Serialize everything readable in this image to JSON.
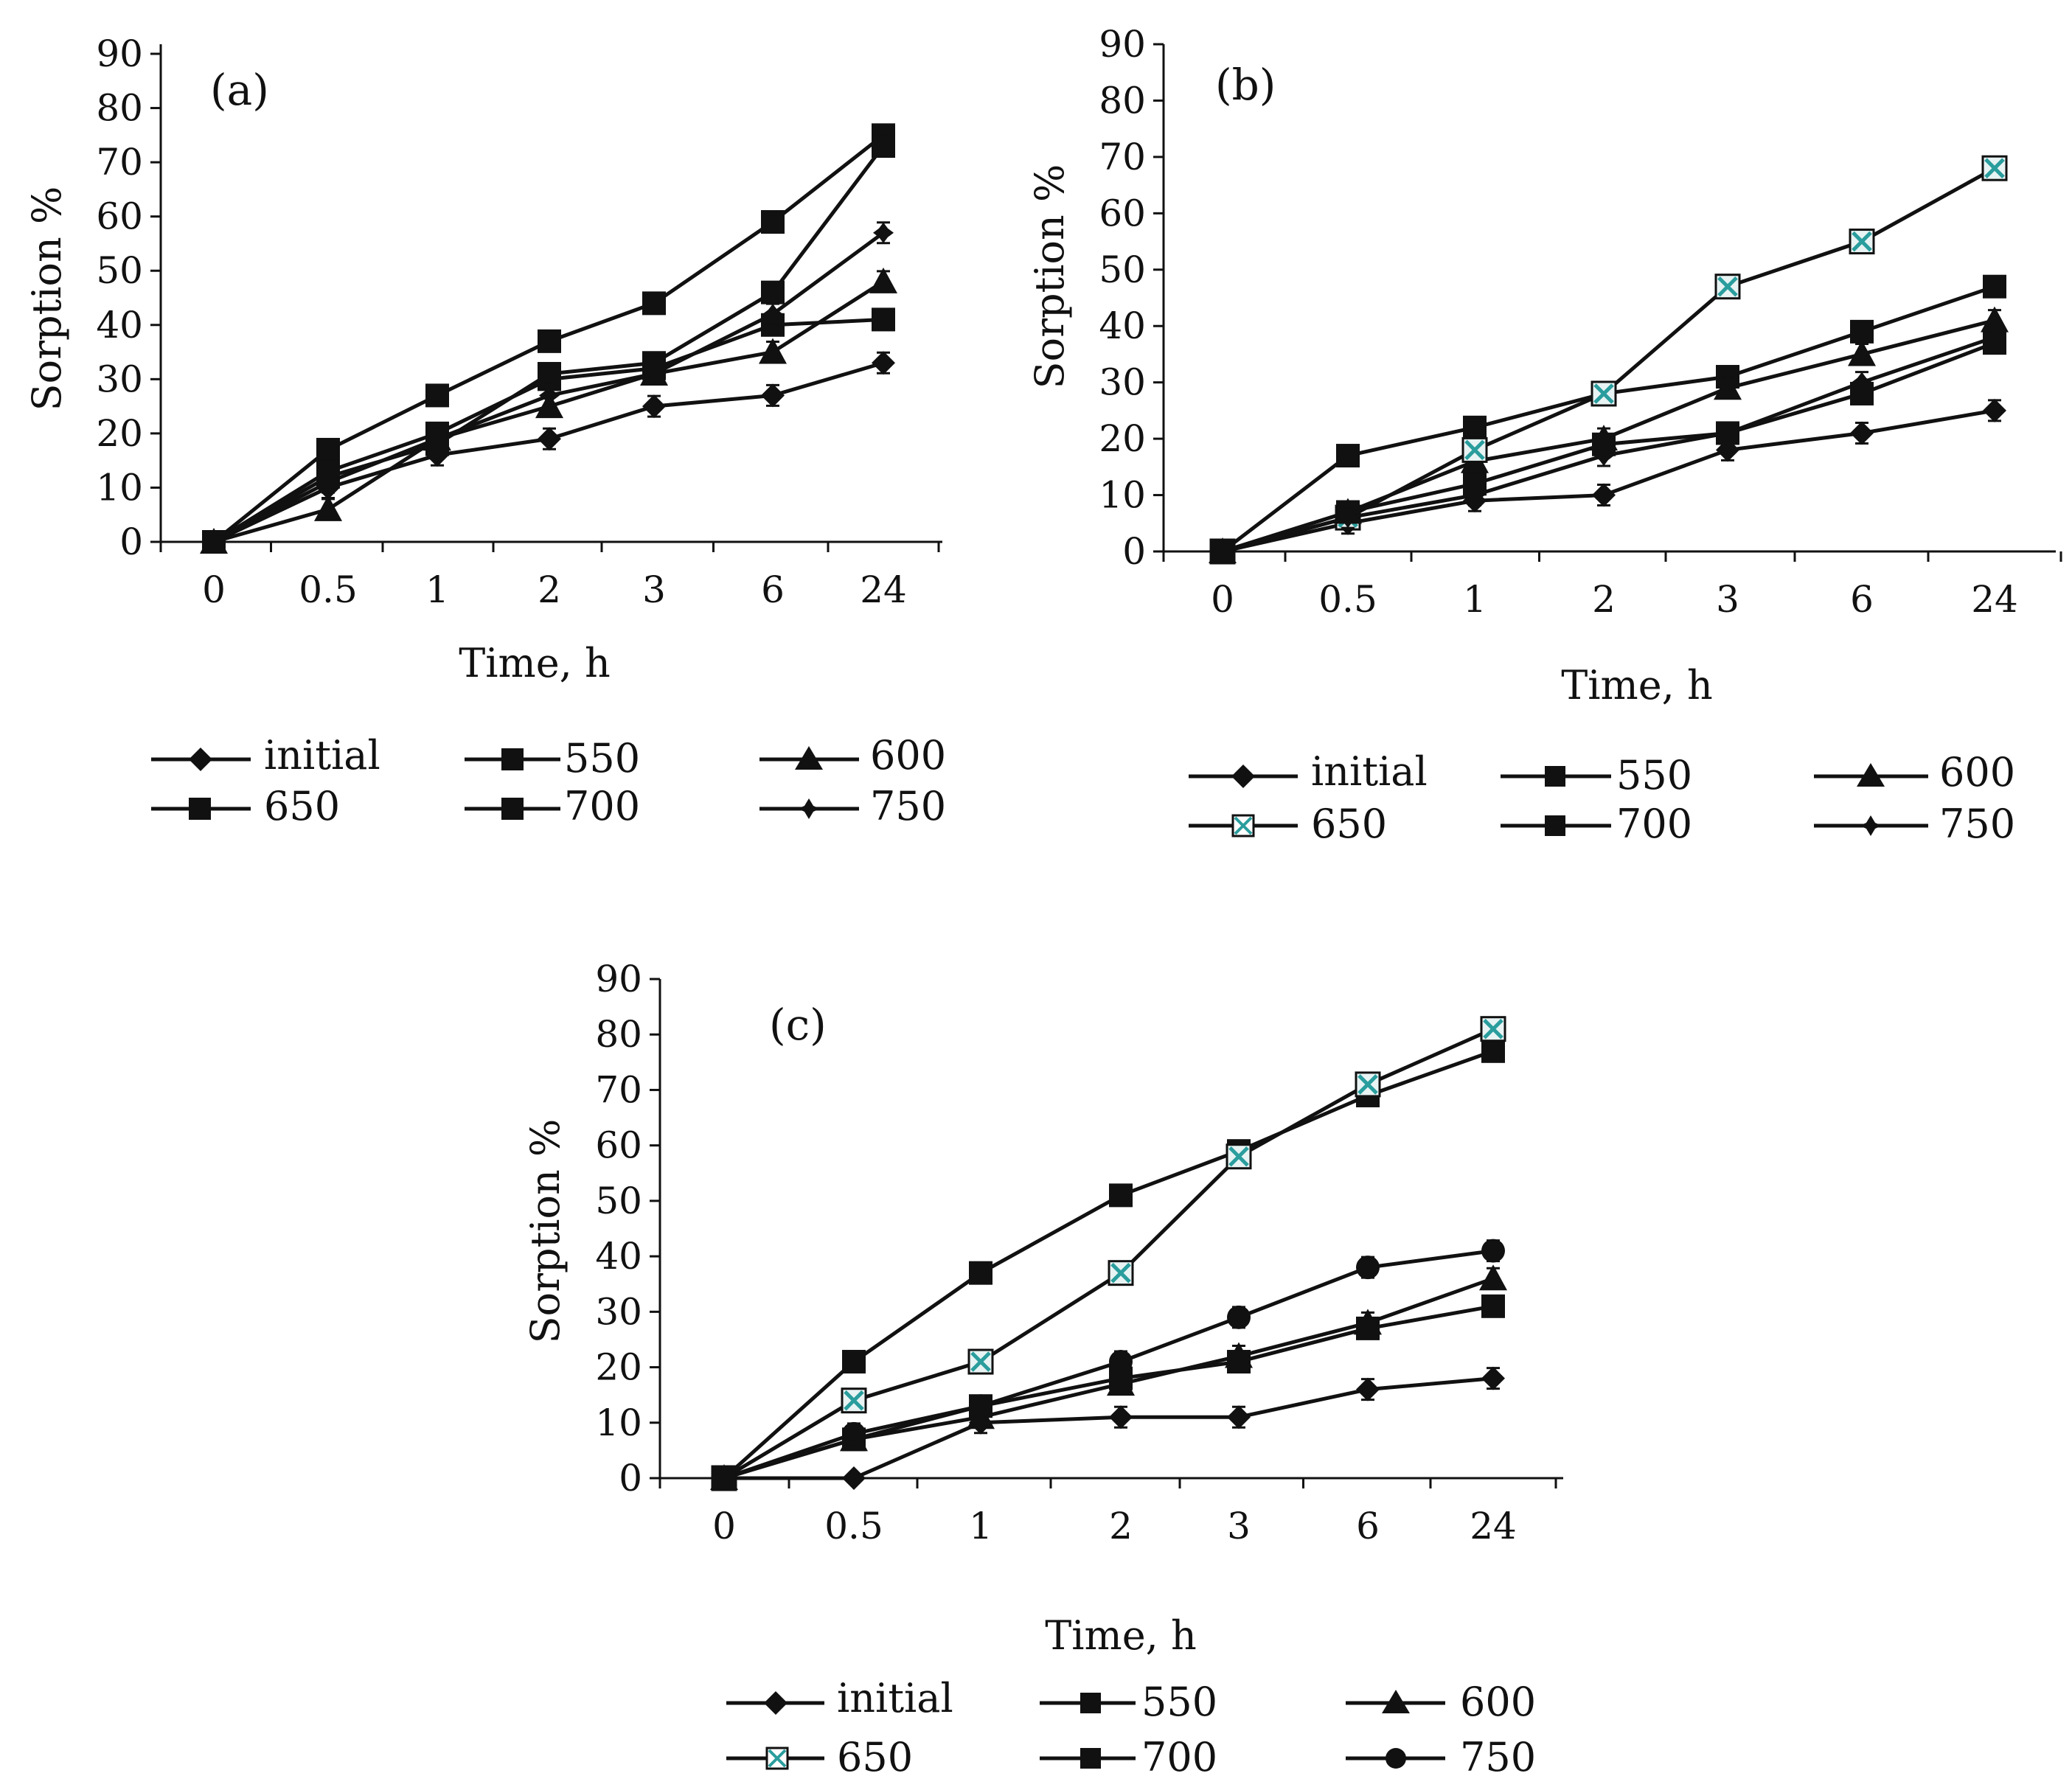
{
  "chart_data": [
    {
      "type": "line",
      "panel_label": "(a)",
      "title": "",
      "xlabel": "Time, h",
      "ylabel": "Sorption %",
      "categories": [
        "0",
        "0.5",
        "1",
        "2",
        "3",
        "6",
        "24"
      ],
      "yticks": [
        "0",
        "10",
        "20",
        "30",
        "40",
        "50",
        "60",
        "70",
        "80",
        "90"
      ],
      "ylim": [
        0,
        90
      ],
      "series": [
        {
          "name": "initial",
          "marker": "diamond",
          "values": [
            0,
            10,
            16,
            19,
            25,
            27,
            33
          ]
        },
        {
          "name": "550",
          "marker": "square",
          "values": [
            0,
            17,
            27,
            37,
            44,
            59,
            75
          ]
        },
        {
          "name": "600",
          "marker": "triangle",
          "values": [
            0,
            6,
            19,
            25,
            31,
            35,
            48
          ]
        },
        {
          "name": "650",
          "marker": "square",
          "values": [
            0,
            12,
            18,
            31,
            33,
            46,
            73
          ]
        },
        {
          "name": "700",
          "marker": "square",
          "values": [
            0,
            13,
            20,
            30,
            32,
            40,
            41
          ]
        },
        {
          "name": "750",
          "marker": "star",
          "values": [
            0,
            11,
            19,
            27,
            31,
            42,
            57
          ]
        }
      ]
    },
    {
      "type": "line",
      "panel_label": "(b)",
      "title": "",
      "xlabel": "Time, h",
      "ylabel": "Sorption %",
      "categories": [
        "0",
        "0.5",
        "1",
        "2",
        "3",
        "6",
        "24"
      ],
      "yticks": [
        "0",
        "10",
        "20",
        "30",
        "40",
        "50",
        "60",
        "70",
        "80",
        "90"
      ],
      "ylim": [
        0,
        90
      ],
      "series": [
        {
          "name": "initial",
          "marker": "diamond",
          "values": [
            0,
            5,
            9,
            10,
            18,
            21,
            25
          ]
        },
        {
          "name": "550",
          "marker": "square",
          "values": [
            0,
            17,
            22,
            28,
            31,
            39,
            47
          ]
        },
        {
          "name": "600",
          "marker": "triangle",
          "values": [
            0,
            7,
            16,
            20,
            29,
            35,
            41
          ]
        },
        {
          "name": "650",
          "marker": "cross-square",
          "color": "#2a9d9d",
          "values": [
            0,
            6,
            18,
            28,
            47,
            55,
            68
          ]
        },
        {
          "name": "700",
          "marker": "square",
          "values": [
            0,
            7,
            12,
            19,
            21,
            28,
            37
          ]
        },
        {
          "name": "750",
          "marker": "star",
          "values": [
            0,
            6,
            10,
            17,
            21,
            30,
            38
          ]
        }
      ]
    },
    {
      "type": "line",
      "panel_label": "(c)",
      "title": "",
      "xlabel": "Time, h",
      "ylabel": "Sorption %",
      "categories": [
        "0",
        "0.5",
        "1",
        "2",
        "3",
        "6",
        "24"
      ],
      "yticks": [
        "0",
        "10",
        "20",
        "30",
        "40",
        "50",
        "60",
        "70",
        "80",
        "90"
      ],
      "ylim": [
        0,
        90
      ],
      "series": [
        {
          "name": "initial",
          "marker": "diamond",
          "values": [
            0,
            0,
            10,
            11,
            11,
            16,
            18
          ]
        },
        {
          "name": "550",
          "marker": "square",
          "values": [
            0,
            21,
            37,
            51,
            59,
            69,
            77
          ]
        },
        {
          "name": "600",
          "marker": "triangle",
          "values": [
            0,
            7,
            11,
            17,
            22,
            28,
            36
          ]
        },
        {
          "name": "650",
          "marker": "cross-square",
          "color": "#2a9d9d",
          "values": [
            0,
            14,
            21,
            37,
            58,
            71,
            81
          ]
        },
        {
          "name": "700",
          "marker": "square",
          "values": [
            0,
            7,
            13,
            18,
            21,
            27,
            31
          ]
        },
        {
          "name": "750",
          "marker": "circle",
          "values": [
            0,
            8,
            13,
            21,
            29,
            38,
            41
          ]
        }
      ]
    }
  ]
}
